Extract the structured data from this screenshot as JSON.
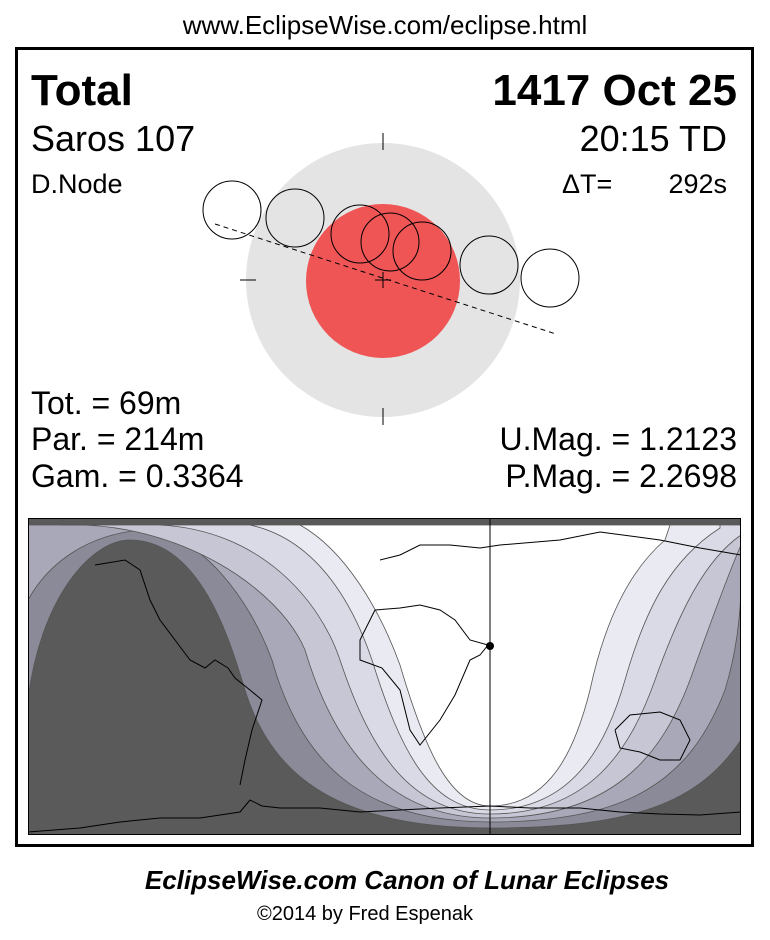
{
  "header": {
    "url": "www.EclipseWise.com/eclipse.html"
  },
  "eclipse": {
    "type": "Total",
    "date": "1417 Oct 25",
    "saros": "Saros 107",
    "time": "20:15 TD",
    "node": "D.Node",
    "delta_t_label": "ΔT=",
    "delta_t_value": "292s",
    "tot": "Tot. =  69m",
    "par": "Par. = 214m",
    "gam": "Gam. = 0.3364",
    "umag": "U.Mag. = 1.2123",
    "pmag": "P.Mag. = 2.2698"
  },
  "colors": {
    "umbra": "#ef5555",
    "penumbra": "#e4e4e4",
    "map_bands": [
      "#5a5a5a",
      "#8a8a98",
      "#a8a8b8",
      "#c6c6d4",
      "#dadae6",
      "#eaeaf2",
      "#ffffff"
    ]
  },
  "footer": {
    "title": "EclipseWise.com Canon of Lunar Eclipses",
    "copyright": "©2014 by Fred Espenak"
  }
}
